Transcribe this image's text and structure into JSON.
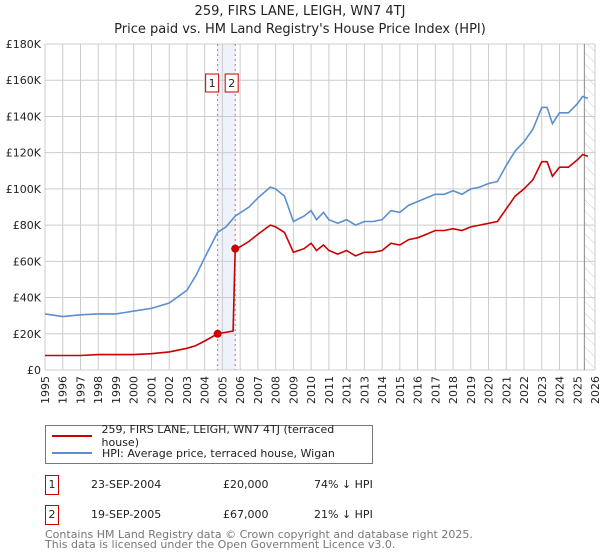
{
  "chart_data": {
    "type": "line",
    "title": "259, FIRS LANE, LEIGH, WN7 4TJ",
    "subtitle": "Price paid vs. HM Land Registry's House Price Index (HPI)",
    "xlim": [
      1995,
      2026
    ],
    "ylim": [
      0,
      180000
    ],
    "x_ticks": [
      "1995",
      "1996",
      "1997",
      "1998",
      "1999",
      "2000",
      "2001",
      "2002",
      "2003",
      "2004",
      "2005",
      "2006",
      "2007",
      "2008",
      "2009",
      "2010",
      "2011",
      "2012",
      "2013",
      "2014",
      "2015",
      "2016",
      "2017",
      "2018",
      "2019",
      "2020",
      "2021",
      "2022",
      "2023",
      "2024",
      "2025",
      "2026"
    ],
    "y_ticks": [
      {
        "v": 0,
        "label": "£0"
      },
      {
        "v": 20000,
        "label": "£20K"
      },
      {
        "v": 40000,
        "label": "£40K"
      },
      {
        "v": 60000,
        "label": "£60K"
      },
      {
        "v": 80000,
        "label": "£80K"
      },
      {
        "v": 100000,
        "label": "£100K"
      },
      {
        "v": 120000,
        "label": "£120K"
      },
      {
        "v": 140000,
        "label": "£140K"
      },
      {
        "v": 160000,
        "label": "£160K"
      },
      {
        "v": 180000,
        "label": "£180K"
      }
    ],
    "grid": true,
    "series": [
      {
        "name": "259, FIRS LANE, LEIGH, WN7 4TJ (terraced house)",
        "color": "#cc0000",
        "x": [
          1995,
          1996,
          1997,
          1998,
          1999,
          2000,
          2001,
          2002,
          2003,
          2003.5,
          2004,
          2004.73,
          2005.0,
          2005.6,
          2005.72,
          2006.0,
          2006.5,
          2007,
          2007.7,
          2008,
          2008.5,
          2009,
          2009.6,
          2010,
          2010.3,
          2010.7,
          2011,
          2011.5,
          2012,
          2012.5,
          2013,
          2013.5,
          2014,
          2014.5,
          2015,
          2015.5,
          2016,
          2016.5,
          2017,
          2017.5,
          2018,
          2018.5,
          2019,
          2019.5,
          2020,
          2020.5,
          2021,
          2021.5,
          2022,
          2022.5,
          2023,
          2023.3,
          2023.6,
          2024,
          2024.5,
          2025,
          2025.3,
          2025.6
        ],
        "y": [
          8000,
          8000,
          8000,
          8500,
          8500,
          8500,
          9000,
          10000,
          12000,
          13500,
          16000,
          20000,
          20500,
          21500,
          67000,
          68000,
          71000,
          75000,
          80000,
          79000,
          76000,
          65000,
          67000,
          70000,
          66000,
          69000,
          66000,
          64000,
          66000,
          63000,
          65000,
          65000,
          66000,
          70000,
          69000,
          72000,
          73000,
          75000,
          77000,
          77000,
          78000,
          77000,
          79000,
          80000,
          81000,
          82000,
          89000,
          96000,
          100000,
          105000,
          115000,
          115000,
          107000,
          112000,
          112000,
          116000,
          119000,
          118000
        ]
      },
      {
        "name": "HPI: Average price, terraced house, Wigan",
        "color": "#5b8fd0",
        "x": [
          1995,
          1996,
          1997,
          1998,
          1999,
          2000,
          2001,
          2002,
          2003,
          2003.5,
          2004,
          2004.73,
          2005.2,
          2005.72,
          2006.5,
          2007,
          2007.7,
          2008,
          2008.5,
          2009,
          2009.6,
          2010,
          2010.3,
          2010.7,
          2011,
          2011.5,
          2012,
          2012.5,
          2013,
          2013.5,
          2014,
          2014.5,
          2015,
          2015.5,
          2016,
          2016.5,
          2017,
          2017.5,
          2018,
          2018.5,
          2019,
          2019.5,
          2020,
          2020.5,
          2021,
          2021.5,
          2022,
          2022.5,
          2023,
          2023.3,
          2023.6,
          2024,
          2024.5,
          2025,
          2025.3,
          2025.6
        ],
        "y": [
          31000,
          29500,
          30500,
          31000,
          31000,
          32500,
          34000,
          37000,
          44000,
          52000,
          62000,
          76000,
          79000,
          85000,
          90000,
          95000,
          101000,
          100000,
          96000,
          82000,
          85000,
          88000,
          83000,
          87000,
          83000,
          81000,
          83000,
          80000,
          82000,
          82000,
          83000,
          88000,
          87000,
          91000,
          93000,
          95000,
          97000,
          97000,
          99000,
          97000,
          100000,
          101000,
          103000,
          104000,
          113000,
          121000,
          126000,
          133000,
          145000,
          145000,
          136000,
          142000,
          142000,
          147000,
          151000,
          150000
        ]
      }
    ],
    "sales": [
      {
        "id": "1",
        "x": 2004.73,
        "y": 20000,
        "date": "23-SEP-2004",
        "price": "£20,000",
        "hpi": "74% ↓ HPI"
      },
      {
        "id": "2",
        "x": 2005.72,
        "y": 67000,
        "date": "19-SEP-2005",
        "price": "£67,000",
        "hpi": "21% ↓ HPI"
      }
    ],
    "forecast_from": 2025.4,
    "legend_position": "bottom"
  },
  "footer": {
    "line1": "Contains HM Land Registry data © Crown copyright and database right 2025.",
    "line2": "This data is licensed under the Open Government Licence v3.0."
  }
}
